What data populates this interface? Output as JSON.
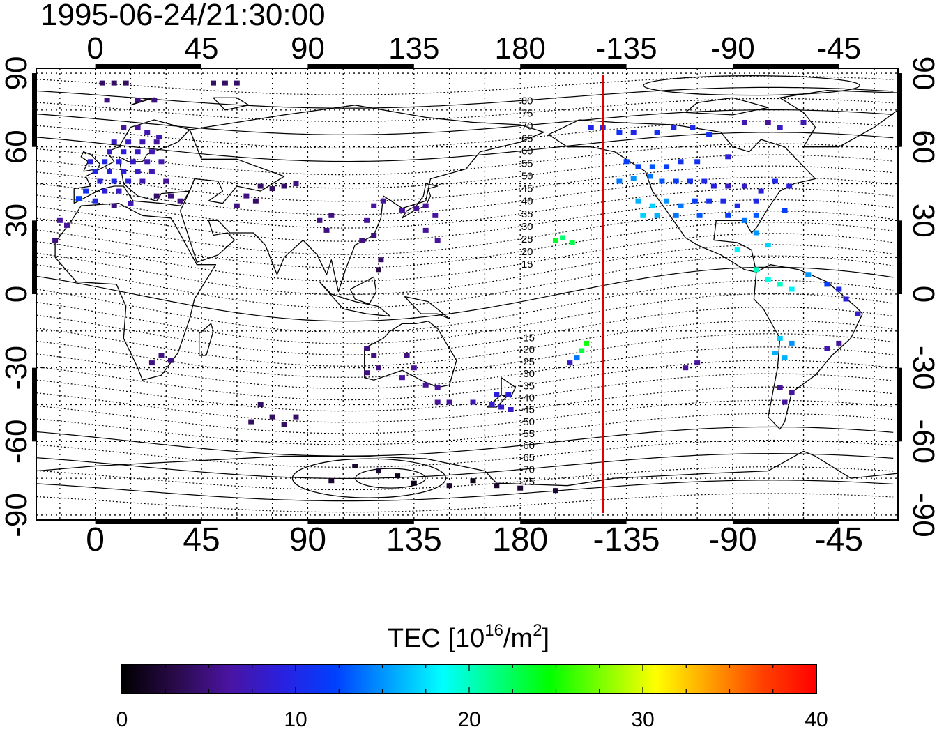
{
  "timestamp": "1995-06-24/21:30:00",
  "lon_tick_labels": [
    "0",
    "45",
    "90",
    "135",
    "180",
    "-135",
    "-90",
    "-45"
  ],
  "lon_tick_values": [
    0,
    45,
    90,
    135,
    180,
    225,
    270,
    315
  ],
  "lat_tick_labels": [
    "90",
    "60",
    "30",
    "0",
    "-30",
    "-60",
    "-90"
  ],
  "lat_tick_values": [
    90,
    60,
    30,
    0,
    -30,
    -60,
    -90
  ],
  "map_range": {
    "lon": [
      -25,
      340
    ],
    "lat": [
      -92,
      92
    ]
  },
  "subsolar_meridian_lon": 215,
  "magnetic_contour_labels": [
    "80",
    "75",
    "70",
    "65",
    "60",
    "55",
    "50",
    "45",
    "40",
    "35",
    "30",
    "25",
    "20",
    "15",
    "-15",
    "-20",
    "-25",
    "-30",
    "-35",
    "-40",
    "-45",
    "-50",
    "-55",
    "-60",
    "-65",
    "-70",
    "-75"
  ],
  "magnetic_contour_label_values": [
    80,
    75,
    70,
    65,
    60,
    55,
    50,
    45,
    40,
    35,
    30,
    25,
    20,
    15,
    -15,
    -20,
    -25,
    -30,
    -35,
    -40,
    -45,
    -50,
    -55,
    -60,
    -65,
    -70,
    -75
  ],
  "colorbar": {
    "title_prefix": "TEC  [10",
    "title_sup1": "16",
    "title_mid": "/m",
    "title_sup2": "2",
    "title_suffix": "]",
    "min": 0,
    "max": 40,
    "tick_labels": [
      "0",
      "10",
      "20",
      "30",
      "40"
    ],
    "tick_values": [
      0,
      10,
      20,
      30,
      40
    ],
    "colors": [
      "#000000",
      "#2a0a4a",
      "#4a14a0",
      "#2a20e0",
      "#0040ff",
      "#00a0ff",
      "#00ffff",
      "#00ff80",
      "#00ff00",
      "#80ff00",
      "#ffff00",
      "#ffa000",
      "#ff4000",
      "#ff0000"
    ]
  },
  "chart_data": {
    "type": "scatter",
    "xlabel": "",
    "ylabel": "",
    "xlim": [
      -25,
      340
    ],
    "ylim": [
      -92,
      92
    ],
    "grid": true,
    "legend": "colorbar-bottom",
    "points": [
      [
        3,
        86,
        4
      ],
      [
        8,
        86,
        4
      ],
      [
        13,
        86,
        4
      ],
      [
        50,
        86,
        4
      ],
      [
        55,
        86,
        4
      ],
      [
        60,
        86,
        4
      ],
      [
        5,
        79,
        5
      ],
      [
        18,
        79,
        5
      ],
      [
        25,
        79,
        5
      ],
      [
        12,
        68,
        6
      ],
      [
        18,
        68,
        6
      ],
      [
        22,
        66,
        7
      ],
      [
        27,
        64,
        7
      ],
      [
        8,
        62,
        8
      ],
      [
        14,
        62,
        8
      ],
      [
        20,
        62,
        7
      ],
      [
        26,
        62,
        6
      ],
      [
        6,
        58,
        8
      ],
      [
        12,
        58,
        9
      ],
      [
        18,
        58,
        8
      ],
      [
        24,
        58,
        7
      ],
      [
        -2,
        54,
        9
      ],
      [
        4,
        54,
        10
      ],
      [
        10,
        54,
        9
      ],
      [
        16,
        54,
        8
      ],
      [
        22,
        54,
        7
      ],
      [
        28,
        54,
        7
      ],
      [
        0,
        50,
        10
      ],
      [
        6,
        50,
        9
      ],
      [
        12,
        50,
        9
      ],
      [
        18,
        50,
        8
      ],
      [
        24,
        50,
        7
      ],
      [
        2,
        46,
        9
      ],
      [
        8,
        46,
        10
      ],
      [
        14,
        46,
        9
      ],
      [
        20,
        46,
        7
      ],
      [
        30,
        46,
        6
      ],
      [
        -4,
        42,
        11
      ],
      [
        4,
        42,
        9
      ],
      [
        10,
        42,
        8
      ],
      [
        26,
        40,
        4
      ],
      [
        32,
        40,
        5
      ],
      [
        36,
        38,
        5
      ],
      [
        -7,
        39,
        12
      ],
      [
        0,
        38,
        10
      ],
      [
        15,
        37,
        7
      ],
      [
        8,
        36,
        5
      ],
      [
        -15,
        30,
        6
      ],
      [
        -12,
        28,
        6
      ],
      [
        -17,
        22,
        5
      ],
      [
        70,
        44,
        4
      ],
      [
        75,
        43,
        4
      ],
      [
        80,
        44,
        4
      ],
      [
        85,
        45,
        5
      ],
      [
        64,
        40,
        5
      ],
      [
        68,
        38,
        4
      ],
      [
        60,
        36,
        5
      ],
      [
        100,
        32,
        5
      ],
      [
        95,
        30,
        5
      ],
      [
        98,
        26,
        5
      ],
      [
        115,
        30,
        6
      ],
      [
        118,
        36,
        6
      ],
      [
        122,
        38,
        6
      ],
      [
        130,
        34,
        6
      ],
      [
        136,
        35,
        6
      ],
      [
        140,
        36,
        6
      ],
      [
        144,
        32,
        6
      ],
      [
        140,
        26,
        6
      ],
      [
        145,
        22,
        6
      ],
      [
        118,
        24,
        5
      ],
      [
        121,
        14,
        4
      ],
      [
        120,
        10,
        3
      ],
      [
        113,
        22,
        5
      ],
      [
        28,
        -25,
        5
      ],
      [
        32,
        -27,
        5
      ],
      [
        24,
        -28,
        5
      ],
      [
        115,
        -22,
        5
      ],
      [
        118,
        -25,
        5
      ],
      [
        120,
        -30,
        5
      ],
      [
        115,
        -32,
        5
      ],
      [
        132,
        -25,
        5
      ],
      [
        135,
        -30,
        6
      ],
      [
        130,
        -34,
        6
      ],
      [
        140,
        -37,
        6
      ],
      [
        145,
        -38,
        6
      ],
      [
        145,
        -44,
        6
      ],
      [
        150,
        -44,
        6
      ],
      [
        160,
        -44,
        7
      ],
      [
        168,
        -45,
        8
      ],
      [
        172,
        -46,
        8
      ],
      [
        176,
        -47,
        8
      ],
      [
        170,
        -41,
        9
      ],
      [
        175,
        -41,
        9
      ],
      [
        70,
        -45,
        4
      ],
      [
        75,
        -50,
        4
      ],
      [
        80,
        -53,
        4
      ],
      [
        66,
        -52,
        4
      ],
      [
        85,
        -50,
        4
      ],
      [
        110,
        -70,
        2
      ],
      [
        120,
        -72,
        2
      ],
      [
        128,
        -74,
        1
      ],
      [
        100,
        -76,
        2
      ],
      [
        135,
        -77,
        1
      ],
      [
        150,
        -78,
        2
      ],
      [
        160,
        -76,
        1
      ],
      [
        170,
        -78,
        2
      ],
      [
        180,
        -79,
        2
      ],
      [
        195,
        -80,
        2
      ],
      [
        198,
        23,
        22
      ],
      [
        202,
        21,
        23
      ],
      [
        195,
        22,
        24
      ],
      [
        208,
        -20,
        25
      ],
      [
        206,
        -23,
        23
      ],
      [
        204,
        -26,
        14
      ],
      [
        201,
        -28,
        8
      ],
      [
        210,
        68,
        10
      ],
      [
        215,
        68,
        10
      ],
      [
        222,
        66,
        11
      ],
      [
        228,
        66,
        10
      ],
      [
        238,
        66,
        11
      ],
      [
        245,
        68,
        10
      ],
      [
        253,
        68,
        10
      ],
      [
        260,
        65,
        11
      ],
      [
        225,
        54,
        12
      ],
      [
        230,
        52,
        12
      ],
      [
        236,
        52,
        13
      ],
      [
        242,
        52,
        12
      ],
      [
        248,
        54,
        11
      ],
      [
        255,
        54,
        11
      ],
      [
        222,
        46,
        14
      ],
      [
        228,
        47,
        15
      ],
      [
        235,
        48,
        14
      ],
      [
        240,
        46,
        13
      ],
      [
        246,
        46,
        12
      ],
      [
        252,
        46,
        11
      ],
      [
        258,
        46,
        10
      ],
      [
        262,
        44,
        9
      ],
      [
        268,
        44,
        8
      ],
      [
        275,
        44,
        8
      ],
      [
        282,
        42,
        9
      ],
      [
        288,
        46,
        10
      ],
      [
        294,
        44,
        9
      ],
      [
        230,
        38,
        16
      ],
      [
        236,
        36,
        17
      ],
      [
        242,
        38,
        15
      ],
      [
        248,
        36,
        14
      ],
      [
        254,
        38,
        12
      ],
      [
        260,
        38,
        11
      ],
      [
        266,
        38,
        10
      ],
      [
        272,
        36,
        10
      ],
      [
        280,
        38,
        10
      ],
      [
        232,
        32,
        17
      ],
      [
        238,
        32,
        16
      ],
      [
        246,
        32,
        14
      ],
      [
        256,
        32,
        13
      ],
      [
        268,
        32,
        12
      ],
      [
        280,
        32,
        13
      ],
      [
        292,
        34,
        12
      ],
      [
        268,
        56,
        9
      ],
      [
        275,
        70,
        7
      ],
      [
        285,
        70,
        6
      ],
      [
        290,
        68,
        8
      ],
      [
        300,
        70,
        7
      ],
      [
        275,
        30,
        14
      ],
      [
        280,
        25,
        15
      ],
      [
        285,
        20,
        17
      ],
      [
        272,
        18,
        18
      ],
      [
        280,
        10,
        20
      ],
      [
        285,
        6,
        19
      ],
      [
        290,
        4,
        20
      ],
      [
        295,
        2,
        18
      ],
      [
        302,
        8,
        15
      ],
      [
        310,
        4,
        12
      ],
      [
        315,
        2,
        10
      ],
      [
        318,
        -2,
        9
      ],
      [
        323,
        -8,
        8
      ],
      [
        290,
        -18,
        17
      ],
      [
        295,
        -20,
        15
      ],
      [
        288,
        -24,
        16
      ],
      [
        292,
        -26,
        16
      ],
      [
        250,
        -30,
        6
      ],
      [
        255,
        -28,
        6
      ],
      [
        310,
        -22,
        7
      ],
      [
        315,
        -20,
        6
      ],
      [
        290,
        -38,
        6
      ],
      [
        295,
        -40,
        6
      ],
      [
        292,
        -44,
        6
      ]
    ]
  }
}
